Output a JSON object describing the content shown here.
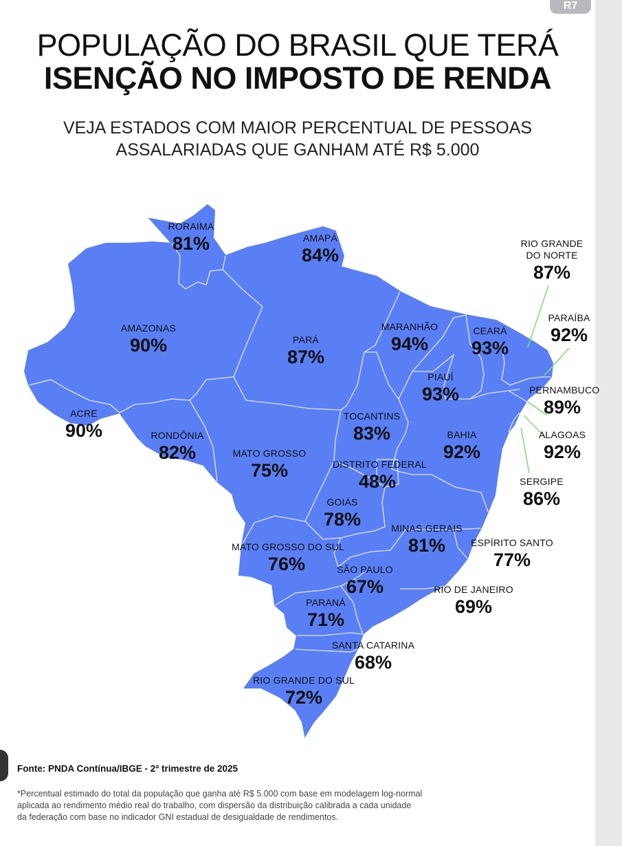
{
  "header": {
    "title_line1": "POPULAÇÃO DO BRASIL QUE TERÁ",
    "title_line2": "ISENÇÃO NO IMPOSTO DE RENDA",
    "subtitle_line1": "VEJA ESTADOS COM MAIOR PERCENTUAL DE PESSOAS",
    "subtitle_line2": "ASSALARIADAS QUE GANHAM ATÉ R$ 5.000",
    "logo_text": "R7"
  },
  "map": {
    "fill_color": "#5a7ff5",
    "border_color": "#dfe6ff",
    "leader_color": "#7bdc6a",
    "states": [
      {
        "name": "RORAIMA",
        "value": "81%"
      },
      {
        "name": "AMAPÁ",
        "value": "84%"
      },
      {
        "name": "RIO GRANDE DO NORTE",
        "value": "87%"
      },
      {
        "name": "AMAZONAS",
        "value": "90%"
      },
      {
        "name": "PARÁ",
        "value": "87%"
      },
      {
        "name": "MARANHÃO",
        "value": "94%"
      },
      {
        "name": "CEARÁ",
        "value": "93%"
      },
      {
        "name": "PARAÍBA",
        "value": "92%"
      },
      {
        "name": "PIAUÍ",
        "value": "93%"
      },
      {
        "name": "PERNAMBUCO",
        "value": "89%"
      },
      {
        "name": "ACRE",
        "value": "90%"
      },
      {
        "name": "RONDÔNIA",
        "value": "82%"
      },
      {
        "name": "TOCANTINS",
        "value": "83%"
      },
      {
        "name": "BAHIA",
        "value": "92%"
      },
      {
        "name": "ALAGOAS",
        "value": "92%"
      },
      {
        "name": "MATO GROSSO",
        "value": "75%"
      },
      {
        "name": "DISTRITO FEDERAL",
        "value": "48%"
      },
      {
        "name": "SERGIPE",
        "value": "86%"
      },
      {
        "name": "GOIÁS",
        "value": "78%"
      },
      {
        "name": "MINAS GERAIS",
        "value": "81%"
      },
      {
        "name": "ESPÍRITO SANTO",
        "value": "77%"
      },
      {
        "name": "MATO GROSSO DO SUL",
        "value": "76%"
      },
      {
        "name": "SÃO PAULO",
        "value": "67%"
      },
      {
        "name": "RIO DE JANEIRO",
        "value": "69%"
      },
      {
        "name": "PARANÁ",
        "value": "71%"
      },
      {
        "name": "SANTA CATARINA",
        "value": "68%"
      },
      {
        "name": "RIO GRANDE DO SUL",
        "value": "72%"
      }
    ]
  },
  "footer": {
    "source": "Fonte: PNDA Contínua/IBGE - 2ª trimestre de 2025",
    "note": "*Percentual estimado do total da população que ganha até R$ 5.000 com base em modelagem log-normal aplicada ao rendimento médio real do trabalho, com dispersão da distribuição calibrada a cada unidade da federação com base no indicador GNI estadual de desigualdade de rendimentos."
  }
}
